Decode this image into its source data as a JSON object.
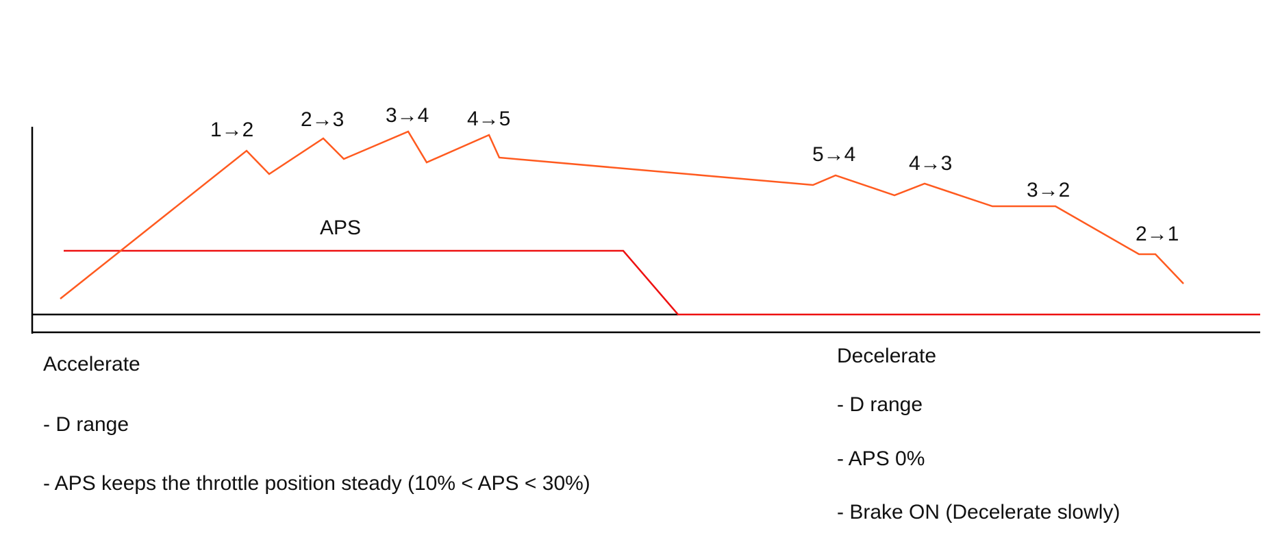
{
  "diagram": {
    "aps_label": "APS",
    "colors": {
      "speed_line": "#ff5a1f",
      "aps_line": "#ee1111",
      "axis": "#000000"
    },
    "shift_labels": [
      "1→2",
      "2→3",
      "3→4",
      "4→5",
      "5→4",
      "4→3",
      "3→2",
      "2→1"
    ]
  },
  "accelerate": {
    "title": "Accelerate",
    "item1": "- D range",
    "item2": "- APS keeps the throttle position steady (10% < APS < 30%)"
  },
  "decelerate": {
    "title": "Decelerate",
    "item1": "- D range",
    "item2": "- APS 0%",
    "item3": "- Brake ON (Decelerate slowly)"
  }
}
